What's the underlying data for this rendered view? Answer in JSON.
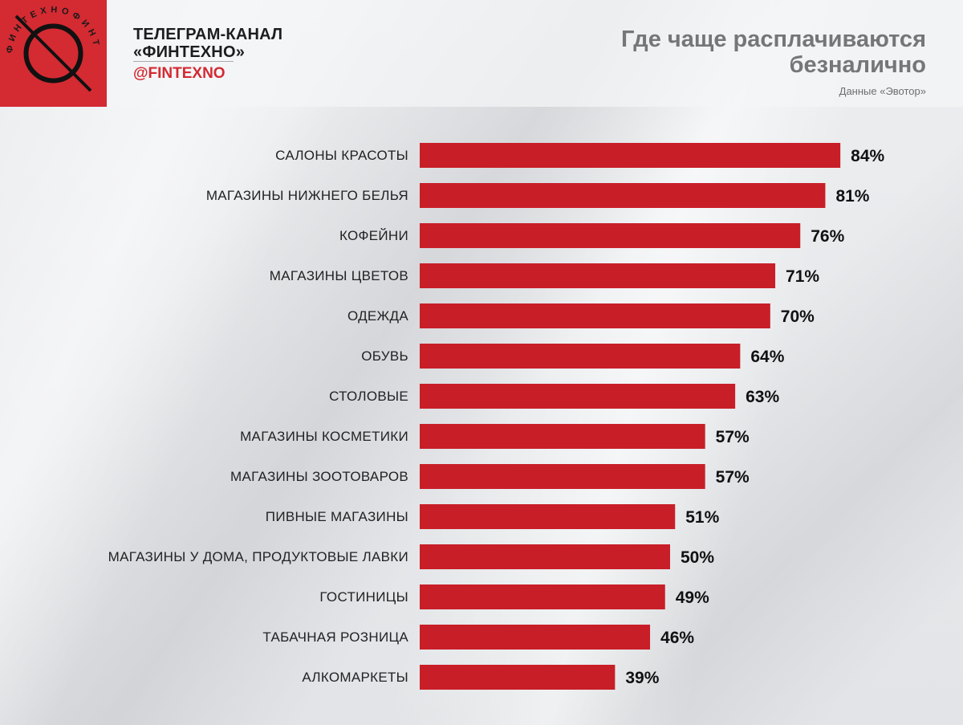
{
  "header": {
    "channel_line1": "ТЕЛЕГРАМ-КАНАЛ",
    "channel_line2": "«ФИНТЕХНО»",
    "handle": "@FINTEXNO",
    "logo_ring_text": "ФИНТЕХНО"
  },
  "colors": {
    "accent": "#d42a32",
    "bar": "#c81e28",
    "title": "#747678"
  },
  "chart_data": {
    "type": "bar",
    "orientation": "horizontal",
    "title": "Где чаще расплачиваются безналично",
    "subtitle": "Данные «Эвотор»",
    "xlabel": "",
    "ylabel": "",
    "xlim": [
      0,
      100
    ],
    "grid": false,
    "categories": [
      "САЛОНЫ КРАСОТЫ",
      "МАГАЗИНЫ НИЖНЕГО БЕЛЬЯ",
      "КОФЕЙНИ",
      "МАГАЗИНЫ ЦВЕТОВ",
      "ОДЕЖДА",
      "ОБУВЬ",
      "СТОЛОВЫЕ",
      "МАГАЗИНЫ КОСМЕТИКИ",
      "МАГАЗИНЫ ЗООТОВАРОВ",
      "ПИВНЫЕ МАГАЗИНЫ",
      "МАГАЗИНЫ У ДОМА, ПРОДУКТОВЫЕ ЛАВКИ",
      "ГОСТИНИЦЫ",
      "ТАБАЧНАЯ РОЗНИЦА",
      "АЛКОМАРКЕТЫ"
    ],
    "values": [
      84,
      81,
      76,
      71,
      70,
      64,
      63,
      57,
      57,
      51,
      50,
      49,
      46,
      39
    ],
    "value_labels": [
      "84%",
      "81%",
      "76%",
      "71%",
      "70%",
      "64%",
      "63%",
      "57%",
      "57%",
      "51%",
      "50%",
      "49%",
      "46%",
      "39%"
    ]
  }
}
